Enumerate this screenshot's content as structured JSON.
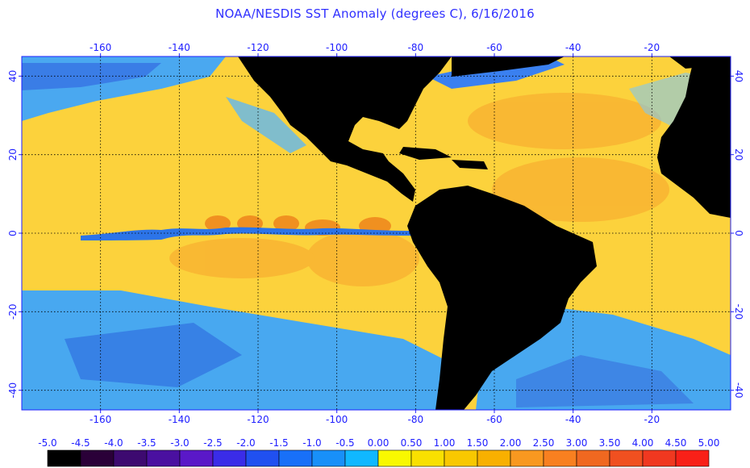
{
  "title": "NOAA/NESDIS SST Anomaly (degrees C), 6/16/2016",
  "map": {
    "lon_labels": [
      "-160",
      "-140",
      "-120",
      "-100",
      "-80",
      "-60",
      "-40",
      "-20"
    ],
    "lon_values": [
      -160,
      -140,
      -120,
      -100,
      -80,
      -60,
      -40,
      -20
    ],
    "lat_labels": [
      "40",
      "20",
      "0",
      "-20",
      "-40"
    ],
    "lat_values": [
      40,
      20,
      0,
      -20,
      -40
    ],
    "lon_range": [
      -180,
      0
    ],
    "lat_range": [
      -45,
      45
    ],
    "grid": true,
    "land_color": "#000000",
    "background_color": "#ffd23a"
  },
  "colorbar": {
    "labels": [
      "-5.0",
      "-4.5",
      "-4.0",
      "-3.5",
      "-3.0",
      "-2.5",
      "-2.0",
      "-1.5",
      "-1.0",
      "-0.5",
      "0.00",
      "0.50",
      "1.00",
      "1.50",
      "2.00",
      "2.50",
      "3.00",
      "3.50",
      "4.00",
      "4.50",
      "5.00"
    ],
    "colors": [
      "#000000",
      "#2a0038",
      "#3d0a70",
      "#4a10a0",
      "#5a18c8",
      "#3a2ce8",
      "#2050f0",
      "#1870f8",
      "#1890f8",
      "#10b8ff",
      "#f8f800",
      "#f8e000",
      "#f8c800",
      "#f8b000",
      "#f89820",
      "#f88020",
      "#f06820",
      "#f05020",
      "#f03820",
      "#f82018"
    ]
  }
}
